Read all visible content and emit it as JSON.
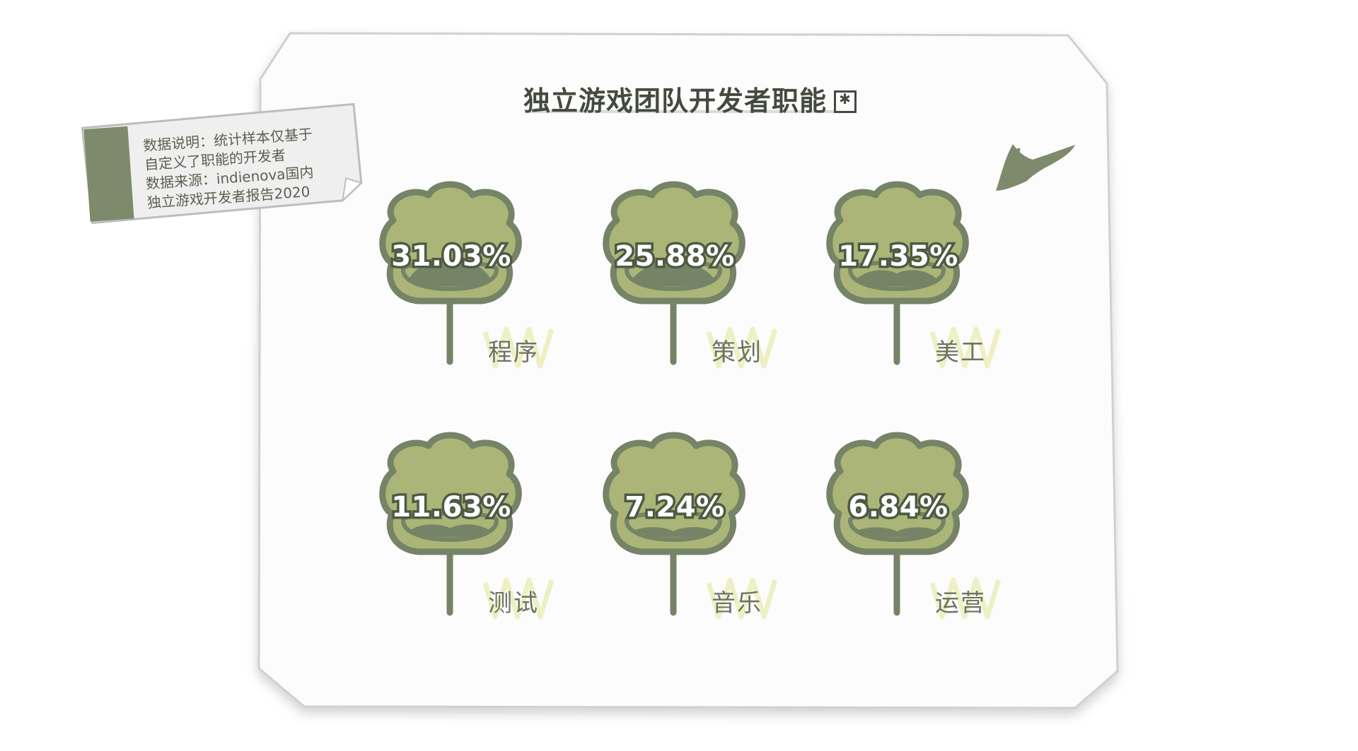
{
  "title": "独立游戏团队开发者职能",
  "note": {
    "lines": [
      "数据说明：统计样本仅基于",
      "自定义了职能的开发者",
      "数据来源：indienova国内",
      "独立游戏开发者报告2020"
    ]
  },
  "colors": {
    "bubble_fill": "#aab577",
    "bubble_outline": "#758366",
    "mustache": "#758366",
    "stem": "#758366",
    "scribble": "#eef0c4",
    "arrow": "#7d8a6c",
    "note_bar": "#7d8a6c",
    "card_border": "#cfcfcf"
  },
  "icons": [
    "asterisk-box-icon",
    "arrow-icon"
  ],
  "chart_data": {
    "type": "pictorial",
    "unit": "%",
    "categories": [
      "程序",
      "策划",
      "美工",
      "测试",
      "音乐",
      "运营"
    ],
    "values": [
      31.03,
      25.88,
      17.35,
      11.63,
      7.24,
      6.84
    ],
    "labels": [
      "31.03%",
      "25.88%",
      "17.35%",
      "11.63%",
      "7.24%",
      "6.84%"
    ]
  }
}
